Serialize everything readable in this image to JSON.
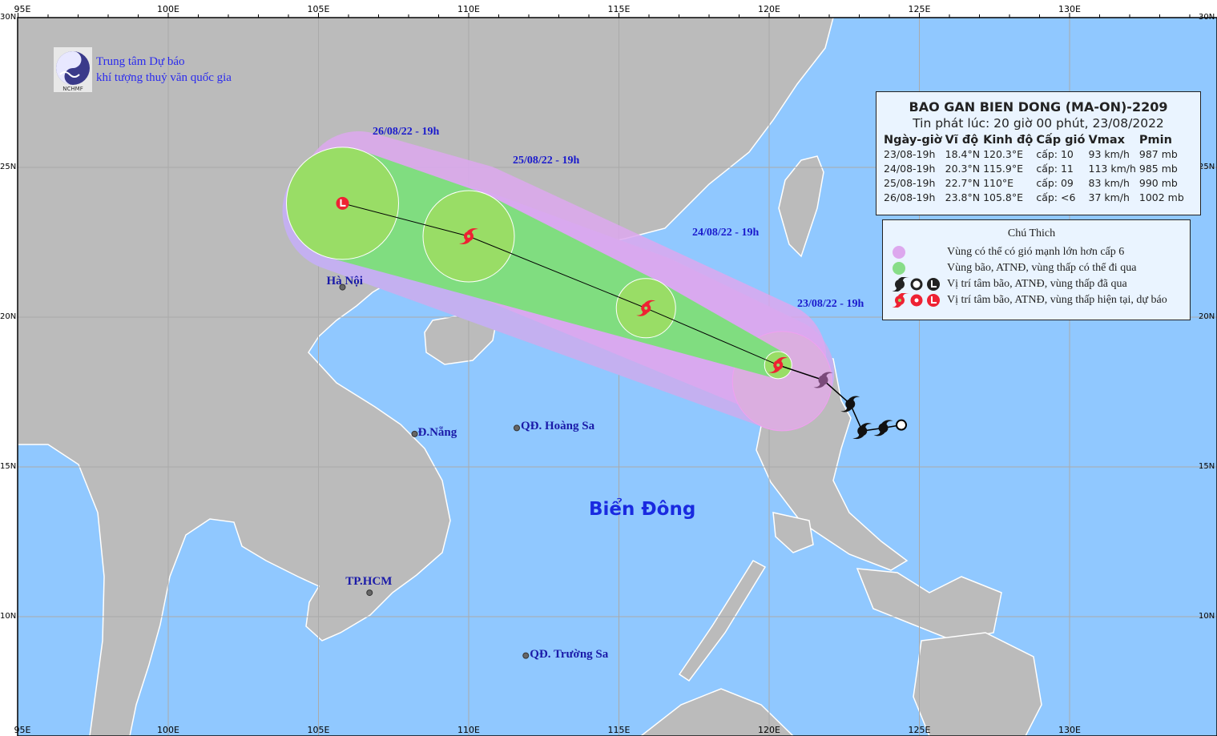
{
  "organization": {
    "line1": "Trung tâm Dự báo",
    "line2": "khí tượng thuỷ văn quốc gia",
    "logo_text": "NCHMF"
  },
  "axes": {
    "lon_labels": [
      "95E",
      "100E",
      "105E",
      "110E",
      "115E",
      "120E",
      "125E",
      "130E"
    ],
    "lon_values": [
      95,
      100,
      105,
      110,
      115,
      120,
      125,
      130
    ],
    "lat_labels": [
      "30N",
      "25N",
      "20N",
      "15N",
      "10N"
    ],
    "lat_values": [
      30,
      25,
      20,
      15,
      10
    ]
  },
  "bulletin": {
    "title": "BAO GAN BIEN DONG (MA-ON)-2209",
    "issued": "Tin phát lúc: 20 giờ 00 phút, 23/08/2022",
    "columns": [
      "Ngày-giờ",
      "Vĩ độ",
      "Kinh độ",
      "Cấp gió",
      "Vmax",
      "Pmin"
    ],
    "rows": [
      [
        "23/08-19h",
        "18.4°N",
        "120.3°E",
        "cấp: 10",
        "93 km/h",
        "987 mb"
      ],
      [
        "24/08-19h",
        "20.3°N",
        "115.9°E",
        "cấp: 11",
        "113 km/h",
        "985 mb"
      ],
      [
        "25/08-19h",
        "22.7°N",
        "110°E",
        "cấp: 09",
        "83 km/h",
        "990 mb"
      ],
      [
        "26/08-19h",
        "23.8°N",
        "105.8°E",
        "cấp: <6",
        "37 km/h",
        "1002 mb"
      ]
    ]
  },
  "legend": {
    "title": "Chú Thich",
    "items": [
      {
        "label": "Vùng có thể có gió mạnh lớn hơn cấp 6",
        "color": "#dda8ee"
      },
      {
        "label": "Vùng bão, ATNĐ, vùng thấp có thể đi qua",
        "color": "#88dd88"
      },
      {
        "label": "Vị trí tâm bão, ATNĐ, vùng thấp đã qua",
        "color": "#222222"
      },
      {
        "label": "Vị trí tâm bão, ATNĐ, vùng thấp hiện tại, dự báo",
        "color": "#ee2233"
      }
    ]
  },
  "forecast_track": [
    {
      "label": "23/08/22 - 19h",
      "lat": 18.4,
      "lon": 120.3,
      "symbol": "storm"
    },
    {
      "label": "24/08/22 - 19h",
      "lat": 20.3,
      "lon": 115.9,
      "symbol": "storm"
    },
    {
      "label": "25/08/22 - 19h",
      "lat": 22.7,
      "lon": 110.0,
      "symbol": "storm"
    },
    {
      "label": "26/08/22 - 19h",
      "lat": 23.8,
      "lon": 105.8,
      "symbol": "low"
    }
  ],
  "past_track": [
    {
      "lat": 17.9,
      "lon": 121.8,
      "symbol": "storm"
    },
    {
      "lat": 17.1,
      "lon": 122.7,
      "symbol": "storm"
    },
    {
      "lat": 16.2,
      "lon": 123.1,
      "symbol": "storm"
    },
    {
      "lat": 16.3,
      "lon": 123.8,
      "symbol": "storm"
    },
    {
      "lat": 16.4,
      "lon": 124.4,
      "symbol": "depression"
    }
  ],
  "places": [
    {
      "name": "Hà Nội",
      "lat": 21.0,
      "lon": 105.8
    },
    {
      "name": "Đ.Nẵng",
      "lat": 16.1,
      "lon": 108.2
    },
    {
      "name": "QĐ. Hoàng Sa",
      "lat": 16.3,
      "lon": 111.6
    },
    {
      "name": "TP.HCM",
      "lat": 10.8,
      "lon": 106.7
    },
    {
      "name": "QĐ. Trường Sa",
      "lat": 8.7,
      "lon": 111.9
    }
  ],
  "sea_label": "Biển Đông",
  "colors": {
    "sea": "#90c8ff",
    "land": "#bbbbbb",
    "wind6": "#dda8ee",
    "wind_purple": "#c4b0f0",
    "cone": "#88dd88",
    "forecast": "#ee2233",
    "past": "#111111"
  }
}
